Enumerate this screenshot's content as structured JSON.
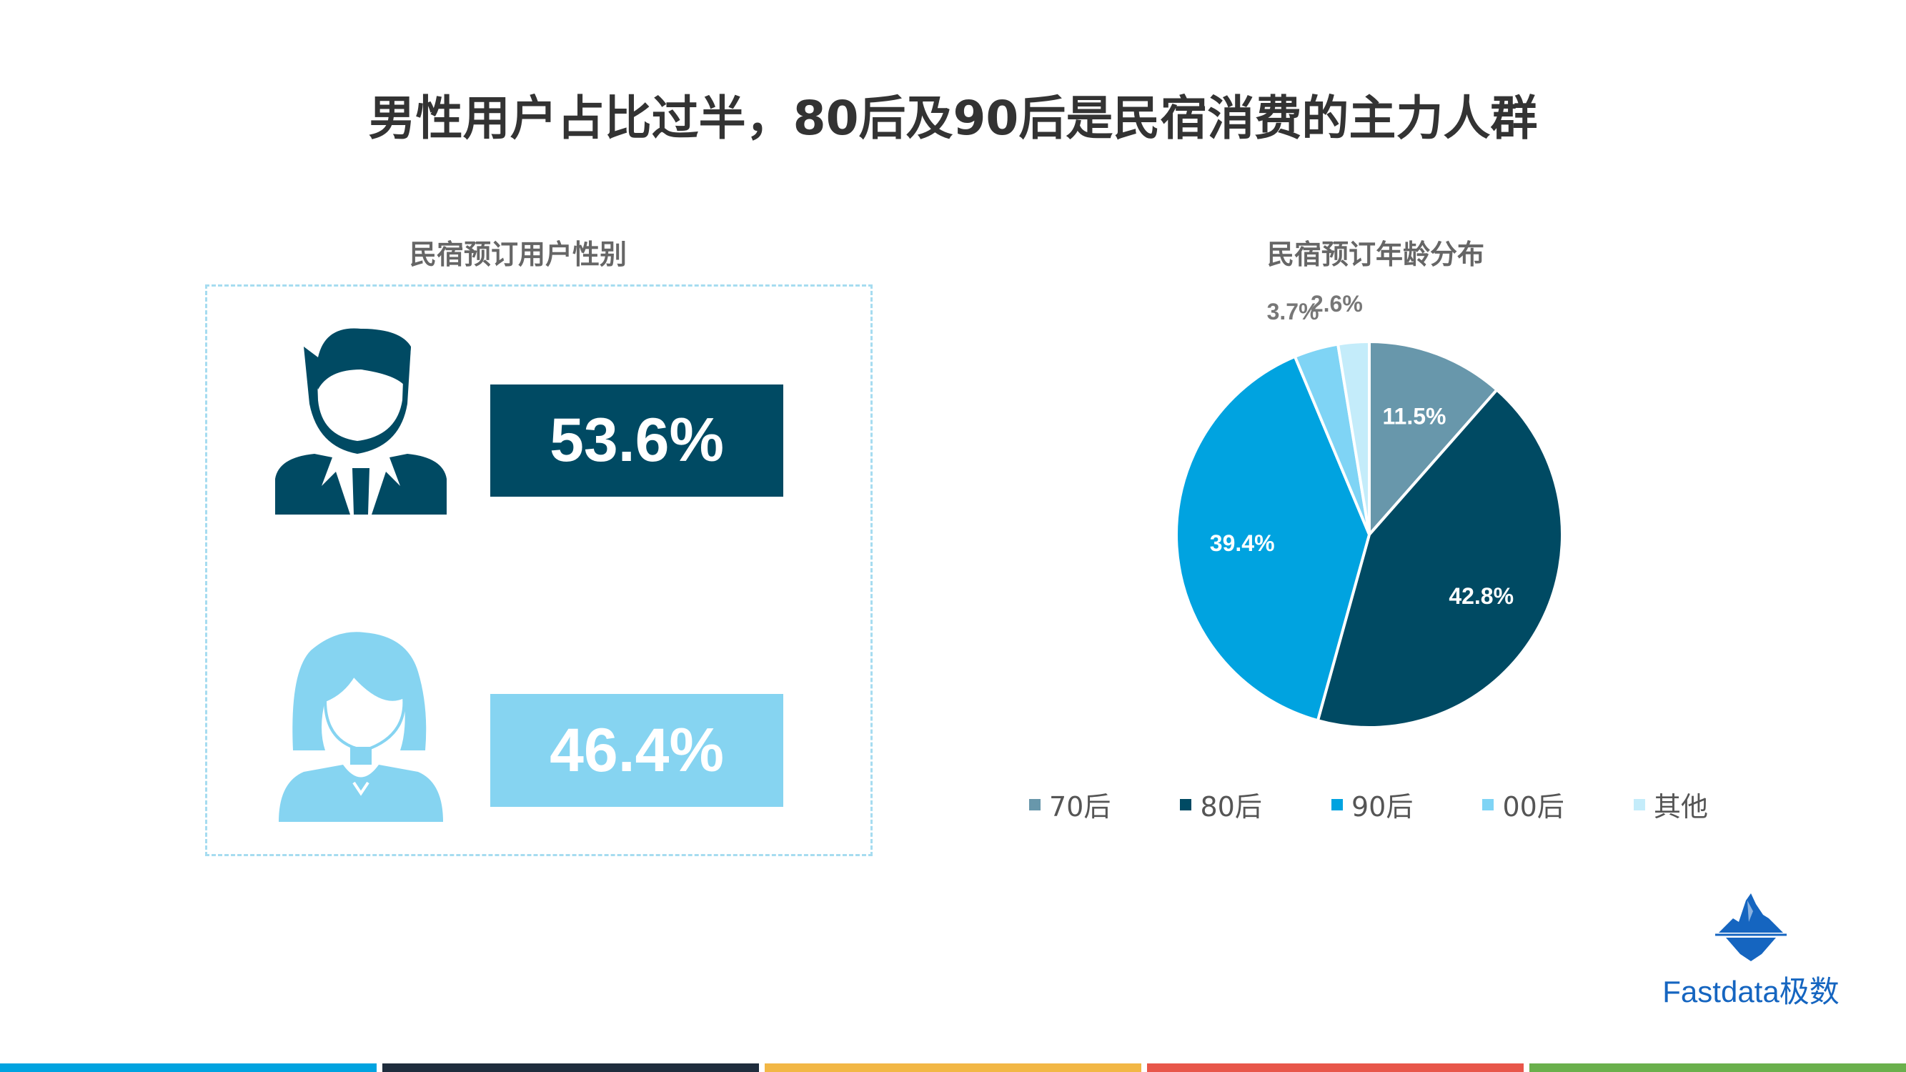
{
  "title": "男性用户占比过半，80后及90后是民宿消费的主力人群",
  "gender_panel": {
    "title": "民宿预订用户性别",
    "male_pct": "53.6%",
    "female_pct": "46.4%",
    "male_color": "#004a63",
    "female_color": "#86d4f1"
  },
  "chart_data": {
    "type": "pie",
    "title": "民宿预订年龄分布",
    "categories": [
      "70后",
      "80后",
      "90后",
      "00后",
      "其他"
    ],
    "values": [
      11.5,
      42.8,
      39.4,
      3.7,
      2.6
    ],
    "labels": [
      "11.5%",
      "42.8%",
      "39.4%",
      "3.7%",
      "2.6%"
    ],
    "colors": [
      "#6897ab",
      "#004a63",
      "#00a3e0",
      "#7fd4f5",
      "#c4ecfa"
    ],
    "legend_position": "bottom"
  },
  "logo": {
    "text": "Fastdata极数",
    "icon": "iceberg-logo-icon"
  },
  "bottom_bar_colors": [
    "#00a3e0",
    "#1f2d3d",
    "#f2b745",
    "#e8564a",
    "#6ab04c"
  ]
}
